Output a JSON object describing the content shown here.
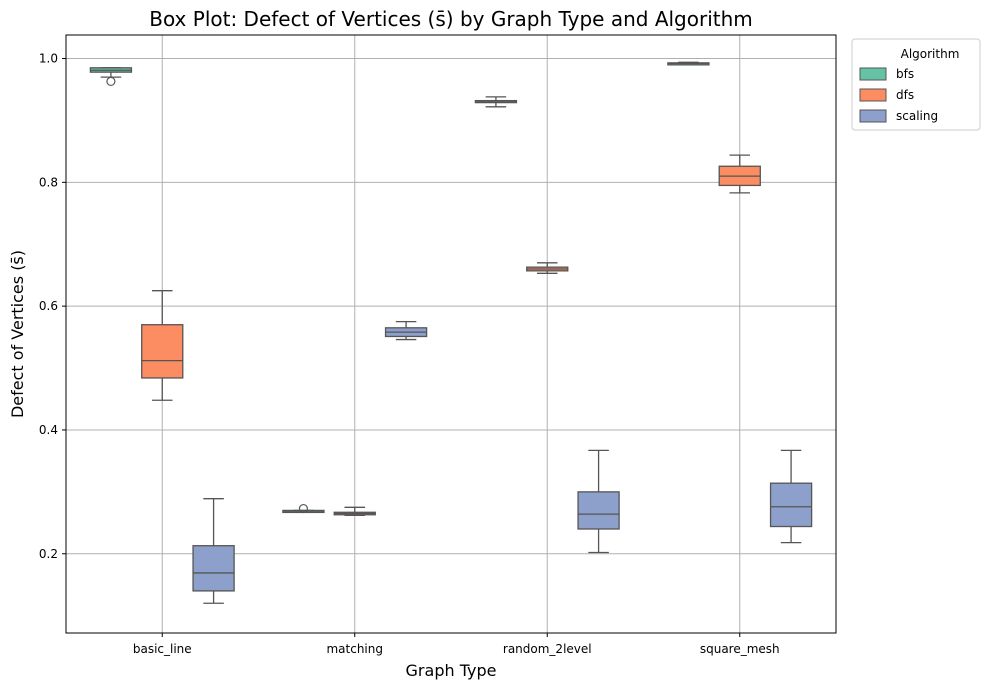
{
  "chart_data": {
    "type": "box",
    "title": "Box Plot: Defect of Vertices (s̄) by Graph Type and Algorithm",
    "xlabel": "Graph Type",
    "ylabel": "Defect of Vertices (s̄)",
    "categories": [
      "basic_line",
      "matching",
      "random_2level",
      "square_mesh"
    ],
    "y_ticks": [
      0.2,
      0.4,
      0.6,
      0.8,
      1.0
    ],
    "y_tick_labels": [
      "0.2",
      "0.4",
      "0.6",
      "0.8",
      "1.0"
    ],
    "ylim": [
      0.072,
      1.038
    ],
    "grid": true,
    "legend": {
      "title": "Algorithm",
      "placement": "outside-top-right"
    },
    "series": [
      {
        "name": "bfs",
        "color": "#66c2a5",
        "boxes": [
          {
            "whisker_low": 0.97,
            "q1": 0.978,
            "median": 0.981,
            "q3": 0.985,
            "whisker_high": 0.985,
            "outliers": [
              0.963
            ]
          },
          {
            "whisker_low": 0.268,
            "q1": 0.268,
            "median": 0.269,
            "q3": 0.27,
            "whisker_high": 0.27,
            "outliers": [
              0.273
            ]
          },
          {
            "whisker_low": 0.922,
            "q1": 0.929,
            "median": 0.93,
            "q3": 0.932,
            "whisker_high": 0.938,
            "outliers": []
          },
          {
            "whisker_low": 0.99,
            "q1": 0.991,
            "median": 0.992,
            "q3": 0.993,
            "whisker_high": 0.994,
            "outliers": []
          }
        ]
      },
      {
        "name": "dfs",
        "color": "#fc8d62",
        "boxes": [
          {
            "whisker_low": 0.448,
            "q1": 0.484,
            "median": 0.512,
            "q3": 0.57,
            "whisker_high": 0.625,
            "outliers": []
          },
          {
            "whisker_low": 0.262,
            "q1": 0.263,
            "median": 0.265,
            "q3": 0.267,
            "whisker_high": 0.275,
            "outliers": []
          },
          {
            "whisker_low": 0.653,
            "q1": 0.657,
            "median": 0.66,
            "q3": 0.663,
            "whisker_high": 0.67,
            "outliers": []
          },
          {
            "whisker_low": 0.783,
            "q1": 0.795,
            "median": 0.81,
            "q3": 0.826,
            "whisker_high": 0.844,
            "outliers": []
          }
        ]
      },
      {
        "name": "scaling",
        "color": "#8da0cb",
        "boxes": [
          {
            "whisker_low": 0.12,
            "q1": 0.14,
            "median": 0.169,
            "q3": 0.213,
            "whisker_high": 0.289,
            "outliers": []
          },
          {
            "whisker_low": 0.546,
            "q1": 0.551,
            "median": 0.558,
            "q3": 0.565,
            "whisker_high": 0.575,
            "outliers": []
          },
          {
            "whisker_low": 0.202,
            "q1": 0.24,
            "median": 0.264,
            "q3": 0.3,
            "whisker_high": 0.367,
            "outliers": []
          },
          {
            "whisker_low": 0.218,
            "q1": 0.244,
            "median": 0.276,
            "q3": 0.314,
            "whisker_high": 0.367,
            "outliers": []
          }
        ]
      }
    ]
  }
}
